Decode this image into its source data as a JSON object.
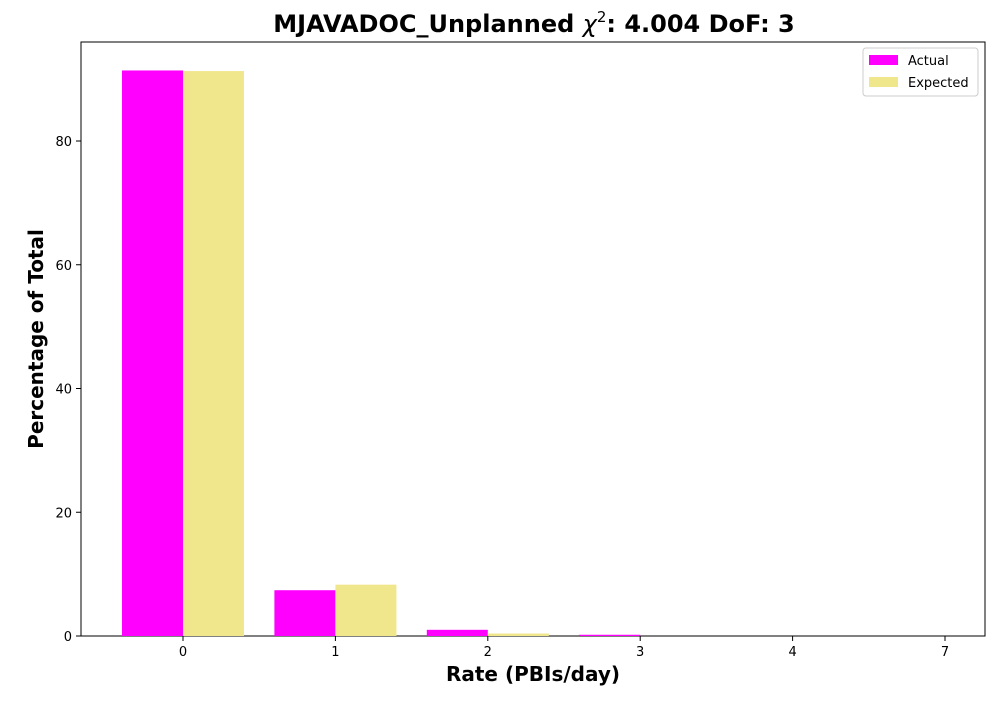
{
  "chart_data": {
    "type": "bar",
    "title": {
      "prefix": "MJAVADOC_Unplanned ",
      "chi_symbol": "χ",
      "chi_exponent": "2",
      "suffix": ": 4.004 DoF: 3"
    },
    "xlabel": "Rate (PBIs/day)",
    "ylabel": "Percentage of Total",
    "categories": [
      "0",
      "1",
      "2",
      "3",
      "4",
      "7"
    ],
    "series": [
      {
        "name": "Actual",
        "color": "#ff00ff",
        "values": [
          91.4,
          7.4,
          1.0,
          0.2,
          0.0,
          0.0
        ]
      },
      {
        "name": "Expected",
        "color": "#f0e68c",
        "values": [
          91.3,
          8.3,
          0.4,
          0.0,
          0.0,
          0.0
        ]
      }
    ],
    "ylim": [
      0,
      96
    ],
    "yticks": [
      0,
      20,
      40,
      60,
      80
    ],
    "grid": false,
    "legend_position": "top-right"
  }
}
